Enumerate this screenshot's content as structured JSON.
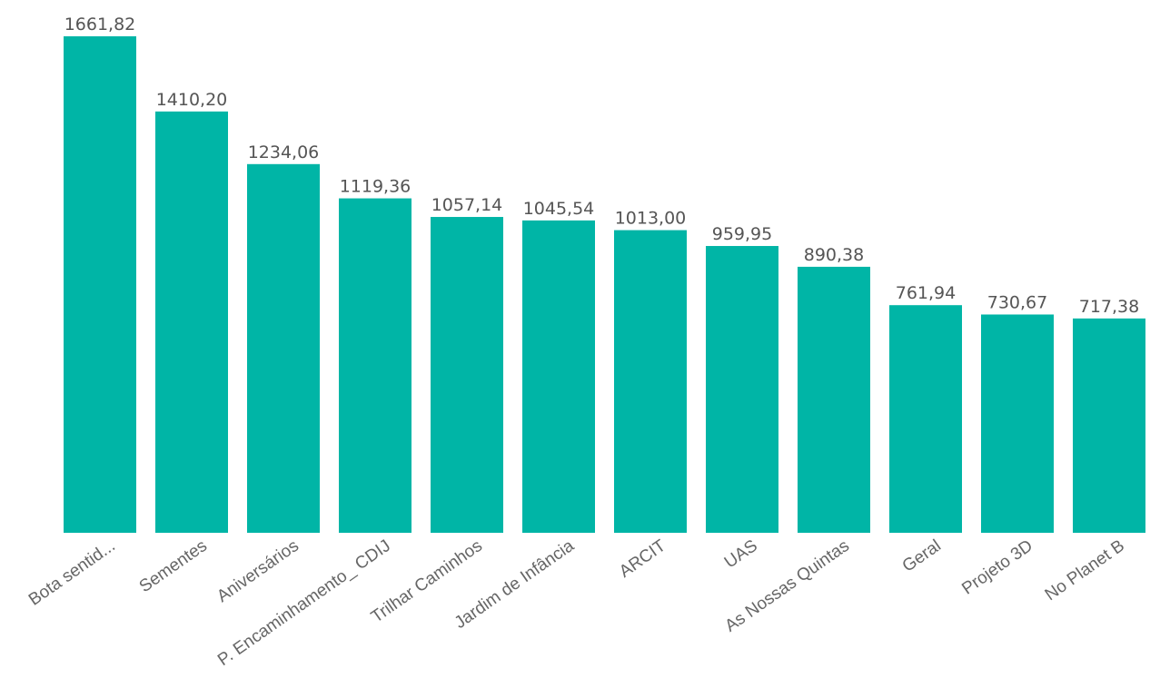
{
  "chart_data": {
    "type": "bar",
    "categories": [
      "Bota sentid...",
      "Sementes",
      "Aniversários",
      "P. Encaminhamento_ CDIJ",
      "Trilhar Caminhos",
      "Jardim de Infância",
      "ARCIT",
      "UAS",
      "As Nossas Quintas",
      "Geral",
      "Projeto 3D",
      "No Planet B"
    ],
    "values": [
      1661.82,
      1410.2,
      1234.06,
      1119.36,
      1057.14,
      1045.54,
      1013.0,
      959.95,
      890.38,
      761.94,
      730.67,
      717.38
    ],
    "data_labels": [
      "1661,82",
      "1410,20",
      "1234,06",
      "1119,36",
      "1057,14",
      "1045,54",
      "1013,00",
      "959,95",
      "890,38",
      "761,94",
      "730,67",
      "717,38"
    ],
    "ylim": [
      0,
      1661.82
    ],
    "grid": false,
    "bar_color": "#00B5A6"
  }
}
